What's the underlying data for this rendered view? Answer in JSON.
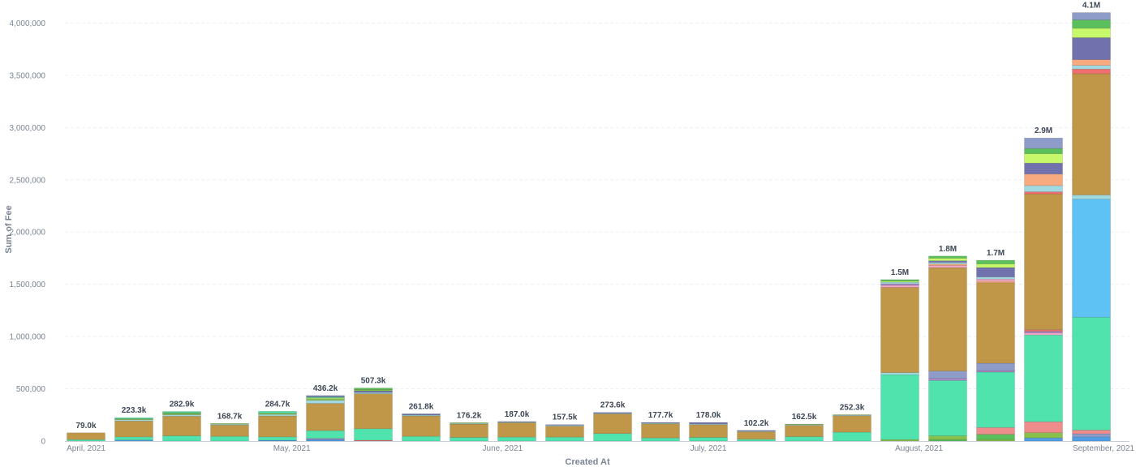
{
  "chart_data": {
    "type": "bar",
    "stacked": true,
    "xlabel": "Created At",
    "ylabel": "Sum of Fee",
    "ylim": [
      0,
      4000000
    ],
    "yticks": [
      0,
      500000,
      1000000,
      1500000,
      2000000,
      2500000,
      3000000,
      3500000,
      4000000
    ],
    "ytick_labels": [
      "0",
      "500,000",
      "1,000,000",
      "1,500,000",
      "2,000,000",
      "2,500,000",
      "3,000,000",
      "3,500,000",
      "4,000,000"
    ],
    "grid": true,
    "x_tick_labels": [
      {
        "label": "April, 2021",
        "at_bar": 0
      },
      {
        "label": "May, 2021",
        "at_bar": 4.3
      },
      {
        "label": "June, 2021",
        "at_bar": 8.7
      },
      {
        "label": "July, 2021",
        "at_bar": 13.0
      },
      {
        "label": "August, 2021",
        "at_bar": 17.4
      },
      {
        "label": "September, 2021",
        "at_bar": 21.8
      }
    ],
    "series_colors": [
      "#509EE3",
      "#88BF4D",
      "#EF8C8C",
      "#51E3AD",
      "#C09749",
      "#A0D9E0",
      "#A989C5",
      "#EF6F6F",
      "#F7A980",
      "#F2A6C7",
      "#7172AD",
      "#C7F86B",
      "#5BBF5B",
      "#8E9CC9",
      "#5FC2F5",
      "#F5D76E",
      "#D36A7F"
    ],
    "bars": [
      {
        "total": 79000,
        "label": "79.0k",
        "segments": [
          {
            "c": 3,
            "v": 14000
          },
          {
            "c": 4,
            "v": 65000
          }
        ]
      },
      {
        "total": 223300,
        "label": "223.3k",
        "segments": [
          {
            "c": 0,
            "v": 10000
          },
          {
            "c": 3,
            "v": 30000
          },
          {
            "c": 4,
            "v": 152000
          },
          {
            "c": 5,
            "v": 12000
          },
          {
            "c": 1,
            "v": 9300
          },
          {
            "c": 3,
            "v": 10000
          }
        ]
      },
      {
        "total": 282900,
        "label": "282.9k",
        "segments": [
          {
            "c": 3,
            "v": 50000
          },
          {
            "c": 4,
            "v": 188000
          },
          {
            "c": 5,
            "v": 14000
          },
          {
            "c": 1,
            "v": 12000
          },
          {
            "c": 12,
            "v": 9000
          },
          {
            "c": 3,
            "v": 9900
          }
        ]
      },
      {
        "total": 168700,
        "label": "168.7k",
        "segments": [
          {
            "c": 3,
            "v": 45000
          },
          {
            "c": 4,
            "v": 108000
          },
          {
            "c": 5,
            "v": 8000
          },
          {
            "c": 1,
            "v": 7700
          }
        ]
      },
      {
        "total": 284700,
        "label": "284.7k",
        "segments": [
          {
            "c": 0,
            "v": 8000
          },
          {
            "c": 3,
            "v": 32000
          },
          {
            "c": 4,
            "v": 200000
          },
          {
            "c": 5,
            "v": 15000
          },
          {
            "c": 1,
            "v": 12000
          },
          {
            "c": 3,
            "v": 17700
          }
        ]
      },
      {
        "total": 436200,
        "label": "436.2k",
        "segments": [
          {
            "c": 0,
            "v": 15000
          },
          {
            "c": 6,
            "v": 10000
          },
          {
            "c": 3,
            "v": 75000
          },
          {
            "c": 4,
            "v": 260000
          },
          {
            "c": 5,
            "v": 30000
          },
          {
            "c": 1,
            "v": 16000
          },
          {
            "c": 11,
            "v": 8000
          },
          {
            "c": 3,
            "v": 8000
          },
          {
            "c": 10,
            "v": 6000
          },
          {
            "c": 13,
            "v": 8200
          }
        ]
      },
      {
        "total": 507300,
        "label": "507.3k",
        "segments": [
          {
            "c": 7,
            "v": 8000
          },
          {
            "c": 3,
            "v": 110000
          },
          {
            "c": 4,
            "v": 335000
          },
          {
            "c": 5,
            "v": 12000
          },
          {
            "c": 10,
            "v": 15000
          },
          {
            "c": 1,
            "v": 12000
          },
          {
            "c": 12,
            "v": 15300
          }
        ]
      },
      {
        "total": 261800,
        "label": "261.8k",
        "segments": [
          {
            "c": 3,
            "v": 45000
          },
          {
            "c": 4,
            "v": 195000
          },
          {
            "c": 5,
            "v": 8000
          },
          {
            "c": 10,
            "v": 7000
          },
          {
            "c": 13,
            "v": 6800
          }
        ]
      },
      {
        "total": 176200,
        "label": "176.2k",
        "segments": [
          {
            "c": 3,
            "v": 35000
          },
          {
            "c": 4,
            "v": 128000
          },
          {
            "c": 5,
            "v": 7000
          },
          {
            "c": 1,
            "v": 6200
          }
        ]
      },
      {
        "total": 187000,
        "label": "187.0k",
        "segments": [
          {
            "c": 3,
            "v": 38000
          },
          {
            "c": 4,
            "v": 138000
          },
          {
            "c": 5,
            "v": 6000
          },
          {
            "c": 10,
            "v": 5000
          }
        ]
      },
      {
        "total": 157500,
        "label": "157.5k",
        "segments": [
          {
            "c": 3,
            "v": 38000
          },
          {
            "c": 4,
            "v": 105000
          },
          {
            "c": 5,
            "v": 8000
          },
          {
            "c": 13,
            "v": 6500
          }
        ]
      },
      {
        "total": 273600,
        "label": "273.6k",
        "segments": [
          {
            "c": 3,
            "v": 72000
          },
          {
            "c": 4,
            "v": 188000
          },
          {
            "c": 5,
            "v": 7000
          },
          {
            "c": 10,
            "v": 6600
          }
        ]
      },
      {
        "total": 177700,
        "label": "177.7k",
        "segments": [
          {
            "c": 3,
            "v": 30000
          },
          {
            "c": 4,
            "v": 135000
          },
          {
            "c": 5,
            "v": 6000
          },
          {
            "c": 10,
            "v": 6700
          }
        ]
      },
      {
        "total": 178000,
        "label": "178.0k",
        "segments": [
          {
            "c": 3,
            "v": 35000
          },
          {
            "c": 4,
            "v": 122000
          },
          {
            "c": 5,
            "v": 7000
          },
          {
            "c": 10,
            "v": 14000
          }
        ]
      },
      {
        "total": 102200,
        "label": "102.2k",
        "segments": [
          {
            "c": 3,
            "v": 18000
          },
          {
            "c": 4,
            "v": 72000
          },
          {
            "c": 5,
            "v": 6000
          },
          {
            "c": 10,
            "v": 6200
          }
        ]
      },
      {
        "total": 162500,
        "label": "162.5k",
        "segments": [
          {
            "c": 3,
            "v": 42000
          },
          {
            "c": 4,
            "v": 108000
          },
          {
            "c": 5,
            "v": 7000
          },
          {
            "c": 1,
            "v": 5500
          }
        ]
      },
      {
        "total": 252300,
        "label": "252.3k",
        "segments": [
          {
            "c": 3,
            "v": 85000
          },
          {
            "c": 4,
            "v": 157000
          },
          {
            "c": 5,
            "v": 6000
          },
          {
            "c": 1,
            "v": 4300
          }
        ]
      },
      {
        "total": 1545000,
        "label": "1.5M",
        "segments": [
          {
            "c": 1,
            "v": 15000
          },
          {
            "c": 3,
            "v": 620000
          },
          {
            "c": 5,
            "v": 20000
          },
          {
            "c": 4,
            "v": 815000
          },
          {
            "c": 9,
            "v": 20000
          },
          {
            "c": 6,
            "v": 15000
          },
          {
            "c": 5,
            "v": 15000
          },
          {
            "c": 11,
            "v": 10000
          },
          {
            "c": 12,
            "v": 15000
          }
        ]
      },
      {
        "total": 1770000,
        "label": "1.8M",
        "segments": [
          {
            "c": 12,
            "v": 15000
          },
          {
            "c": 1,
            "v": 35000
          },
          {
            "c": 3,
            "v": 530000
          },
          {
            "c": 6,
            "v": 20000
          },
          {
            "c": 13,
            "v": 70000
          },
          {
            "c": 4,
            "v": 990000
          },
          {
            "c": 9,
            "v": 20000
          },
          {
            "c": 8,
            "v": 15000
          },
          {
            "c": 5,
            "v": 15000
          },
          {
            "c": 10,
            "v": 15000
          },
          {
            "c": 11,
            "v": 25000
          },
          {
            "c": 12,
            "v": 20000
          }
        ]
      },
      {
        "total": 1730000,
        "label": "1.7M",
        "segments": [
          {
            "c": 1,
            "v": 15000
          },
          {
            "c": 12,
            "v": 50000
          },
          {
            "c": 2,
            "v": 65000
          },
          {
            "c": 3,
            "v": 530000
          },
          {
            "c": 6,
            "v": 15000
          },
          {
            "c": 13,
            "v": 70000
          },
          {
            "c": 4,
            "v": 770000
          },
          {
            "c": 8,
            "v": 15000
          },
          {
            "c": 9,
            "v": 20000
          },
          {
            "c": 5,
            "v": 20000
          },
          {
            "c": 10,
            "v": 90000
          },
          {
            "c": 11,
            "v": 35000
          },
          {
            "c": 12,
            "v": 35000
          }
        ]
      },
      {
        "total": 2900000,
        "label": "2.9M",
        "segments": [
          {
            "c": 0,
            "v": 30000
          },
          {
            "c": 1,
            "v": 50000
          },
          {
            "c": 2,
            "v": 105000
          },
          {
            "c": 3,
            "v": 830000
          },
          {
            "c": 9,
            "v": 20000
          },
          {
            "c": 6,
            "v": 15000
          },
          {
            "c": 7,
            "v": 15000
          },
          {
            "c": 4,
            "v": 1300000
          },
          {
            "c": 7,
            "v": 20000
          },
          {
            "c": 5,
            "v": 60000
          },
          {
            "c": 8,
            "v": 110000
          },
          {
            "c": 10,
            "v": 105000
          },
          {
            "c": 11,
            "v": 90000
          },
          {
            "c": 12,
            "v": 50000
          },
          {
            "c": 13,
            "v": 100000
          }
        ]
      },
      {
        "total": 4100000,
        "label": "4.1M",
        "segments": [
          {
            "c": 0,
            "v": 40000
          },
          {
            "c": 13,
            "v": 30000
          },
          {
            "c": 2,
            "v": 35000
          },
          {
            "c": 3,
            "v": 1080000
          },
          {
            "c": 14,
            "v": 1130000
          },
          {
            "c": 5,
            "v": 40000
          },
          {
            "c": 4,
            "v": 1160000
          },
          {
            "c": 7,
            "v": 45000
          },
          {
            "c": 5,
            "v": 35000
          },
          {
            "c": 8,
            "v": 55000
          },
          {
            "c": 10,
            "v": 210000
          },
          {
            "c": 11,
            "v": 90000
          },
          {
            "c": 12,
            "v": 80000
          },
          {
            "c": 13,
            "v": 70000
          }
        ]
      }
    ]
  }
}
